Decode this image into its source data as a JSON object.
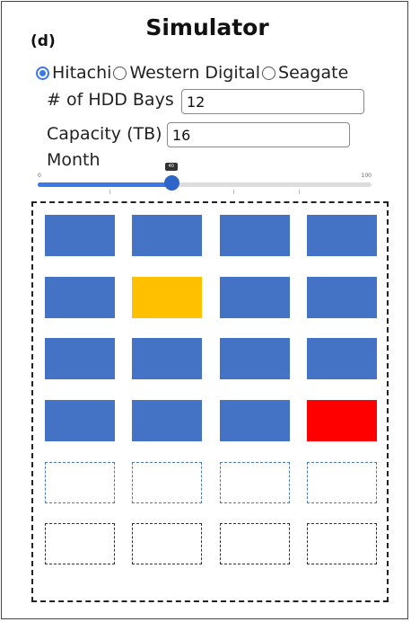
{
  "panel_label": "(d)",
  "title": "Simulator",
  "manufacturers": [
    {
      "label": "Hitachi",
      "selected": true
    },
    {
      "label": "Western Digital",
      "selected": false
    },
    {
      "label": "Seagate",
      "selected": false
    }
  ],
  "hdd_bays": {
    "label": "# of HDD Bays",
    "value": "12"
  },
  "capacity": {
    "label": "Capacity (TB)",
    "value": "16"
  },
  "month": {
    "label": "Month",
    "min": "0",
    "max": "100",
    "value": 40,
    "value_label": "40"
  },
  "colors": {
    "healthy": "#4472c4",
    "warning": "#ffc000",
    "failed": "#ff0000"
  },
  "bays": [
    [
      "healthy",
      "healthy",
      "healthy",
      "healthy"
    ],
    [
      "healthy",
      "warning",
      "healthy",
      "healthy"
    ],
    [
      "healthy",
      "healthy",
      "healthy",
      "healthy"
    ],
    [
      "healthy",
      "healthy",
      "healthy",
      "failed"
    ],
    [
      "empty",
      "empty",
      "empty",
      "empty"
    ],
    [
      "empty",
      "empty",
      "empty",
      "empty"
    ]
  ]
}
